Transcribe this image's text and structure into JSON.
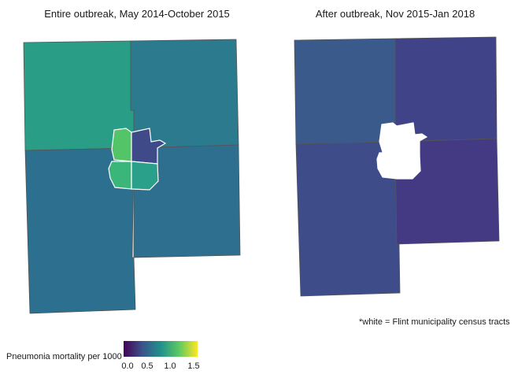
{
  "panels": [
    {
      "title": "Entire outbreak, May 2014-October 2015",
      "regions": {
        "NW": {
          "color": "#2a9d87"
        },
        "NE": {
          "color": "#2c7a8d"
        },
        "SW": {
          "color": "#2c6f8e"
        },
        "SE": {
          "color": "#2e6e8e"
        },
        "flint_nw": {
          "color": "#53c568"
        },
        "flint_ne": {
          "color": "#3f4b89"
        },
        "flint_sw": {
          "color": "#3bb67a"
        },
        "flint_se": {
          "color": "#2aa08a"
        }
      }
    },
    {
      "title": "After outbreak, Nov 2015-Jan 2018",
      "regions": {
        "NW": {
          "color": "#3b5a8c"
        },
        "NE": {
          "color": "#404387"
        },
        "SW": {
          "color": "#3e4c8a"
        },
        "SE": {
          "color": "#433a83"
        },
        "flint_nw": {
          "color": "#ffffff"
        },
        "flint_ne": {
          "color": "#ffffff"
        },
        "flint_sw": {
          "color": "#ffffff"
        },
        "flint_se": {
          "color": "#ffffff"
        }
      }
    }
  ],
  "footnote": "*white = Flint municipality census tracts",
  "legend": {
    "title": "Pneumonia mortality per 1000",
    "ticks": [
      "0.0",
      "0.5",
      "1.0",
      "1.5"
    ],
    "colors": [
      "#440154",
      "#3b528b",
      "#21908c",
      "#5ec962",
      "#fde725"
    ]
  }
}
